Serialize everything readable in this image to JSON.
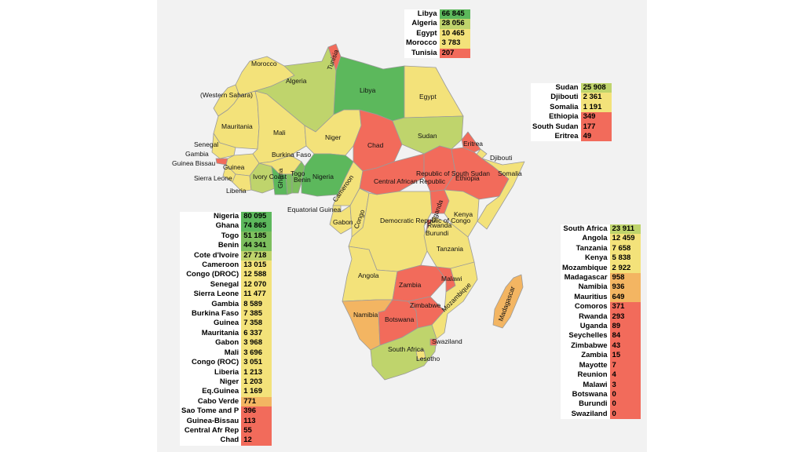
{
  "colors": {
    "dark_green": "#5cb85c",
    "green": "#7dbf5e",
    "light_green": "#bfd46c",
    "yellow": "#f3e27a",
    "orange": "#f3b562",
    "red": "#f26b5b"
  },
  "map_labels": [
    "Morocco",
    "Algeria",
    "Libya",
    "Egypt",
    "Tunisia",
    "(Western Sahara)",
    "Mauritania",
    "Mali",
    "Niger",
    "Chad",
    "Sudan",
    "Eritrea",
    "Djibouti",
    "Somalia",
    "Ethiopia",
    "Republic of South Sudan",
    "Senegal",
    "Gambia",
    "Guinea Bissau",
    "Guinea",
    "Sierra Leone",
    "Liberia",
    "Ivory Coast",
    "Burkina Faso",
    "Ghana",
    "Togo",
    "Benin",
    "Nigeria",
    "Cameroon",
    "Central African Republic",
    "Equatorial Guinea",
    "Gabon",
    "Congo",
    "Democratic Republic of Congo",
    "Uganda",
    "Kenya",
    "Rwanda",
    "Burundi",
    "Tanzania",
    "Angola",
    "Zambia",
    "Malawi",
    "Mozambique",
    "Namibia",
    "Botswana",
    "Zimbabwe",
    "Madagascar",
    "South Africa",
    "Swaziland",
    "Lesotho"
  ],
  "tables": {
    "north": [
      {
        "name": "Libya",
        "value": "66 845",
        "color": "#5cb85c"
      },
      {
        "name": "Algeria",
        "value": "28 056",
        "color": "#bfd46c"
      },
      {
        "name": "Egypt",
        "value": "10 465",
        "color": "#f3e27a"
      },
      {
        "name": "Morocco",
        "value": "3 783",
        "color": "#f3e27a"
      },
      {
        "name": "Tunisia",
        "value": "207",
        "color": "#f26b5b"
      }
    ],
    "east": [
      {
        "name": "Sudan",
        "value": "25 908",
        "color": "#bfd46c"
      },
      {
        "name": "Djibouti",
        "value": "2 361",
        "color": "#f3e27a"
      },
      {
        "name": "Somalia",
        "value": "1 191",
        "color": "#f3e27a"
      },
      {
        "name": "Ethiopia",
        "value": "349",
        "color": "#f26b5b"
      },
      {
        "name": "South Sudan",
        "value": "177",
        "color": "#f26b5b"
      },
      {
        "name": "Eritrea",
        "value": "49",
        "color": "#f26b5b"
      }
    ],
    "west": [
      {
        "name": "Nigeria",
        "value": "80 095",
        "color": "#5cb85c"
      },
      {
        "name": "Ghana",
        "value": "74 865",
        "color": "#5cb85c"
      },
      {
        "name": "Togo",
        "value": "51 185",
        "color": "#7dbf5e"
      },
      {
        "name": "Benin",
        "value": "44 341",
        "color": "#7dbf5e"
      },
      {
        "name": "Cote d'Ivoire",
        "value": "27 718",
        "color": "#bfd46c"
      },
      {
        "name": "Cameroon",
        "value": "13 015",
        "color": "#f3e27a"
      },
      {
        "name": "Congo (DROC)",
        "value": "12 588",
        "color": "#f3e27a"
      },
      {
        "name": "Senegal",
        "value": "12 070",
        "color": "#f3e27a"
      },
      {
        "name": "Sierra Leone",
        "value": "11 477",
        "color": "#f3e27a"
      },
      {
        "name": "Gambia",
        "value": "8 589",
        "color": "#f3e27a"
      },
      {
        "name": "Burkina Faso",
        "value": "7 385",
        "color": "#f3e27a"
      },
      {
        "name": "Guinea",
        "value": "7 358",
        "color": "#f3e27a"
      },
      {
        "name": "Mauritania",
        "value": "6 337",
        "color": "#f3e27a"
      },
      {
        "name": "Gabon",
        "value": "3 968",
        "color": "#f3e27a"
      },
      {
        "name": "Mali",
        "value": "3 696",
        "color": "#f3e27a"
      },
      {
        "name": "Congo (ROC)",
        "value": "3 051",
        "color": "#f3e27a"
      },
      {
        "name": "Liberia",
        "value": "1 213",
        "color": "#f3e27a"
      },
      {
        "name": "Niger",
        "value": "1 203",
        "color": "#f3e27a"
      },
      {
        "name": "Eq.Guinea",
        "value": "1 169",
        "color": "#f3e27a"
      },
      {
        "name": "Cabo Verde",
        "value": "771",
        "color": "#f3b562"
      },
      {
        "name": "Sao Tome and P",
        "value": "396",
        "color": "#f26b5b"
      },
      {
        "name": "Guinea-Bissau",
        "value": "113",
        "color": "#f26b5b"
      },
      {
        "name": "Central Afr Rep",
        "value": "55",
        "color": "#f26b5b"
      },
      {
        "name": "Chad",
        "value": "12",
        "color": "#f26b5b"
      }
    ],
    "south": [
      {
        "name": "South Africa",
        "value": "23 911",
        "color": "#bfd46c"
      },
      {
        "name": "Angola",
        "value": "12 459",
        "color": "#f3e27a"
      },
      {
        "name": "Tanzania",
        "value": "7 658",
        "color": "#f3e27a"
      },
      {
        "name": "Kenya",
        "value": "5 838",
        "color": "#f3e27a"
      },
      {
        "name": "Mozambique",
        "value": "2 922",
        "color": "#f3e27a"
      },
      {
        "name": "Madagascar",
        "value": "958",
        "color": "#f3b562"
      },
      {
        "name": "Namibia",
        "value": "936",
        "color": "#f3b562"
      },
      {
        "name": "Mauritius",
        "value": "649",
        "color": "#f3b562"
      },
      {
        "name": "Comoros",
        "value": "371",
        "color": "#f26b5b"
      },
      {
        "name": "Rwanda",
        "value": "293",
        "color": "#f26b5b"
      },
      {
        "name": "Uganda",
        "value": "89",
        "color": "#f26b5b"
      },
      {
        "name": "Seychelles",
        "value": "84",
        "color": "#f26b5b"
      },
      {
        "name": "Zimbabwe",
        "value": "43",
        "color": "#f26b5b"
      },
      {
        "name": "Zambia",
        "value": "15",
        "color": "#f26b5b"
      },
      {
        "name": "Mayotte",
        "value": "7",
        "color": "#f26b5b"
      },
      {
        "name": "Reunion",
        "value": "4",
        "color": "#f26b5b"
      },
      {
        "name": "Malawi",
        "value": "3",
        "color": "#f26b5b"
      },
      {
        "name": "Botswana",
        "value": "0",
        "color": "#f26b5b"
      },
      {
        "name": "Burundi",
        "value": "0",
        "color": "#f26b5b"
      },
      {
        "name": "Swaziland",
        "value": "0",
        "color": "#f26b5b"
      }
    ]
  }
}
